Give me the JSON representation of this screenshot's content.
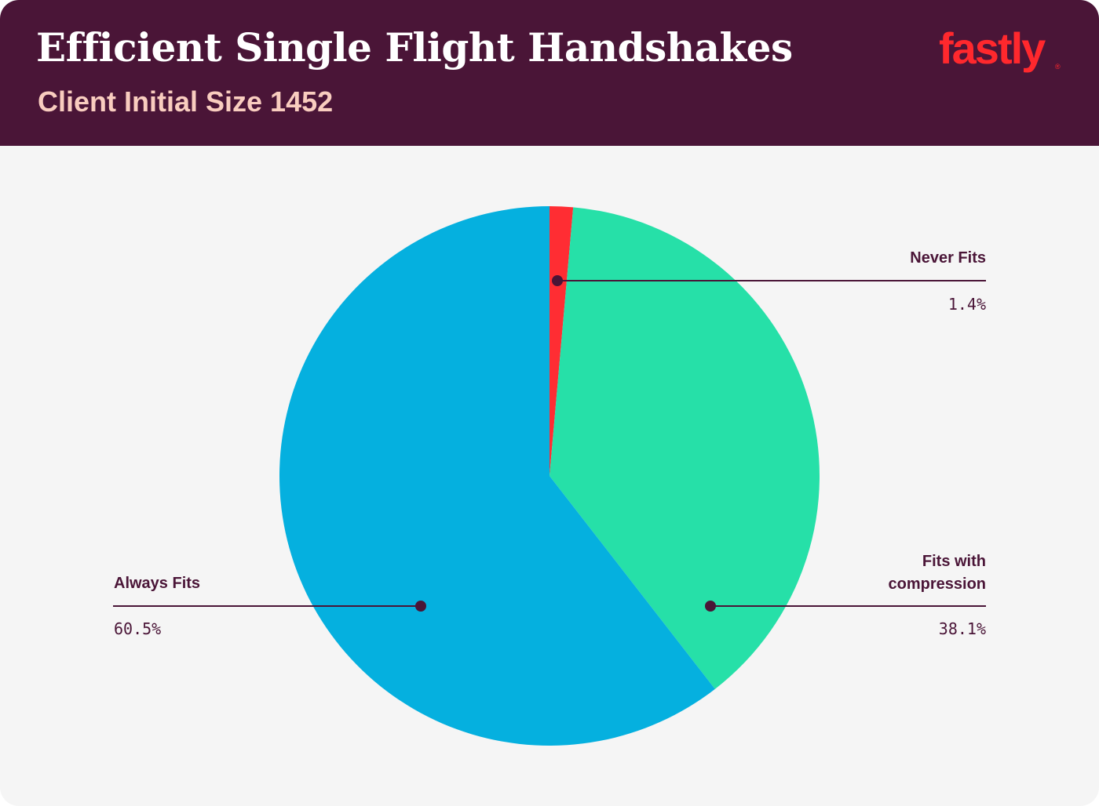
{
  "header": {
    "title": "Efficient Single Flight Handshakes",
    "subtitle": "Client Initial Size 1452",
    "logo_text": "fastly",
    "logo_mark": "®"
  },
  "colors": {
    "header_bg": "#4a1537",
    "subtitle": "#f9cdbf",
    "brand_red": "#ff282d",
    "background": "#f5f5f5",
    "leader": "#4a1537"
  },
  "chart_data": {
    "type": "pie",
    "title": "Efficient Single Flight Handshakes",
    "subtitle": "Client Initial Size 1452",
    "start": "12 o'clock",
    "direction": "clockwise",
    "slices": [
      {
        "label": "Never Fits",
        "value": 1.4,
        "display": "1.4%",
        "color": "#ff2d33"
      },
      {
        "label": "Fits with compression",
        "value": 38.1,
        "display": "38.1%",
        "color": "#26e0a8"
      },
      {
        "label": "Always Fits",
        "value": 60.5,
        "display": "60.5%",
        "color": "#05b0df"
      }
    ]
  },
  "labels": {
    "never": {
      "name": "Never Fits",
      "value": "1.4%"
    },
    "compression": {
      "name_line1": "Fits with",
      "name_line2": "compression",
      "value": "38.1%"
    },
    "always": {
      "name": "Always Fits",
      "value": "60.5%"
    }
  }
}
